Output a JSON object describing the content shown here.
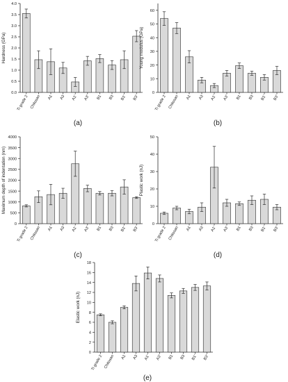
{
  "figure": {
    "panel_labels": [
      "(a)",
      "(b)",
      "(c)",
      "(d)",
      "(e)"
    ]
  },
  "colors": {
    "bar_fill": "#d9d9d9",
    "bar_stroke": "#2b2b2b",
    "axis": "#2b2b2b",
    "text": "#1a1a1a"
  },
  "chart_data": [
    {
      "type": "bar",
      "panel": "(a)",
      "title": "",
      "ylabel": "Hardness (GPa)",
      "xlabel": "",
      "categories": [
        "Ti grade 2",
        "Chitosan",
        "A1",
        "A3",
        "A1'",
        "A3'",
        "B1",
        "B3",
        "B1'",
        "B3'"
      ],
      "values": [
        3.55,
        1.47,
        1.38,
        1.1,
        0.47,
        1.42,
        1.52,
        1.23,
        1.47,
        2.53
      ],
      "errors": [
        0.2,
        0.4,
        0.58,
        0.25,
        0.2,
        0.2,
        0.18,
        0.2,
        0.4,
        0.25
      ],
      "ylim": [
        0,
        4.0
      ],
      "yticks": [
        "0.0",
        "0.5",
        "1.0",
        "1.5",
        "2.0",
        "2.5",
        "3.0",
        "3.5",
        "4.0"
      ],
      "grid": false
    },
    {
      "type": "bar",
      "panel": "(b)",
      "title": "",
      "ylabel": "Young modulus (GPa)",
      "xlabel": "",
      "categories": [
        "Ti grade 2",
        "Chitosan",
        "A1",
        "A3",
        "A1'",
        "A3'",
        "B1",
        "B3",
        "B1'",
        "B3'"
      ],
      "values": [
        54,
        47,
        26,
        9,
        5,
        14,
        19.5,
        14,
        11,
        16
      ],
      "errors": [
        5,
        4,
        4.5,
        2,
        1.5,
        2,
        2,
        1.5,
        2,
        3
      ],
      "ylim": [
        0,
        65
      ],
      "yticks": [
        "0",
        "10",
        "20",
        "30",
        "40",
        "50",
        "60"
      ],
      "grid": false
    },
    {
      "type": "bar",
      "panel": "(c)",
      "title": "",
      "ylabel": "Maximum depth of indentation (nm)",
      "xlabel": "",
      "categories": [
        "Ti grade 2",
        "Chitosan",
        "A1",
        "A3",
        "A1'",
        "A3'",
        "B1",
        "B3",
        "B1'",
        "B3'"
      ],
      "values": [
        820,
        1240,
        1340,
        1400,
        2760,
        1620,
        1400,
        1400,
        1690,
        1200
      ],
      "errors": [
        50,
        270,
        470,
        230,
        580,
        150,
        80,
        120,
        330,
        40
      ],
      "ylim": [
        0,
        4000
      ],
      "yticks": [
        "0",
        "500",
        "1000",
        "1500",
        "2000",
        "2500",
        "3000",
        "3500",
        "4000"
      ],
      "grid": false
    },
    {
      "type": "bar",
      "panel": "(d)",
      "title": "",
      "ylabel": "Plastic work (nJ)",
      "xlabel": "",
      "categories": [
        "Ti grade 2",
        "Chitosan",
        "A1",
        "A3",
        "A1'",
        "A3'",
        "B1",
        "B3",
        "B1'",
        "B3'"
      ],
      "values": [
        6,
        9,
        7,
        9.5,
        32.5,
        12,
        11.5,
        13.5,
        14,
        9.5
      ],
      "errors": [
        0.7,
        1,
        1.3,
        2.5,
        12,
        2,
        1,
        2.5,
        3,
        1.5
      ],
      "ylim": [
        0,
        50
      ],
      "yticks": [
        "0",
        "10",
        "20",
        "30",
        "40",
        "50"
      ],
      "grid": false
    },
    {
      "type": "bar",
      "panel": "(e)",
      "title": "",
      "ylabel": "Elastic work (nJ)",
      "xlabel": "",
      "categories": [
        "Ti grade 2",
        "Chitosan",
        "A1",
        "A3",
        "A1'",
        "A3'",
        "B1",
        "B3",
        "B1'",
        "B3'"
      ],
      "values": [
        7.5,
        6,
        9,
        13.8,
        15.9,
        14.8,
        11.4,
        12.3,
        13,
        13.3
      ],
      "errors": [
        0.2,
        0.3,
        0.3,
        1.5,
        1.2,
        0.7,
        0.5,
        0.5,
        0.6,
        0.8
      ],
      "ylim": [
        0,
        18
      ],
      "yticks": [
        "0",
        "2",
        "4",
        "6",
        "8",
        "10",
        "12",
        "14",
        "16",
        "18"
      ],
      "grid": false
    }
  ]
}
